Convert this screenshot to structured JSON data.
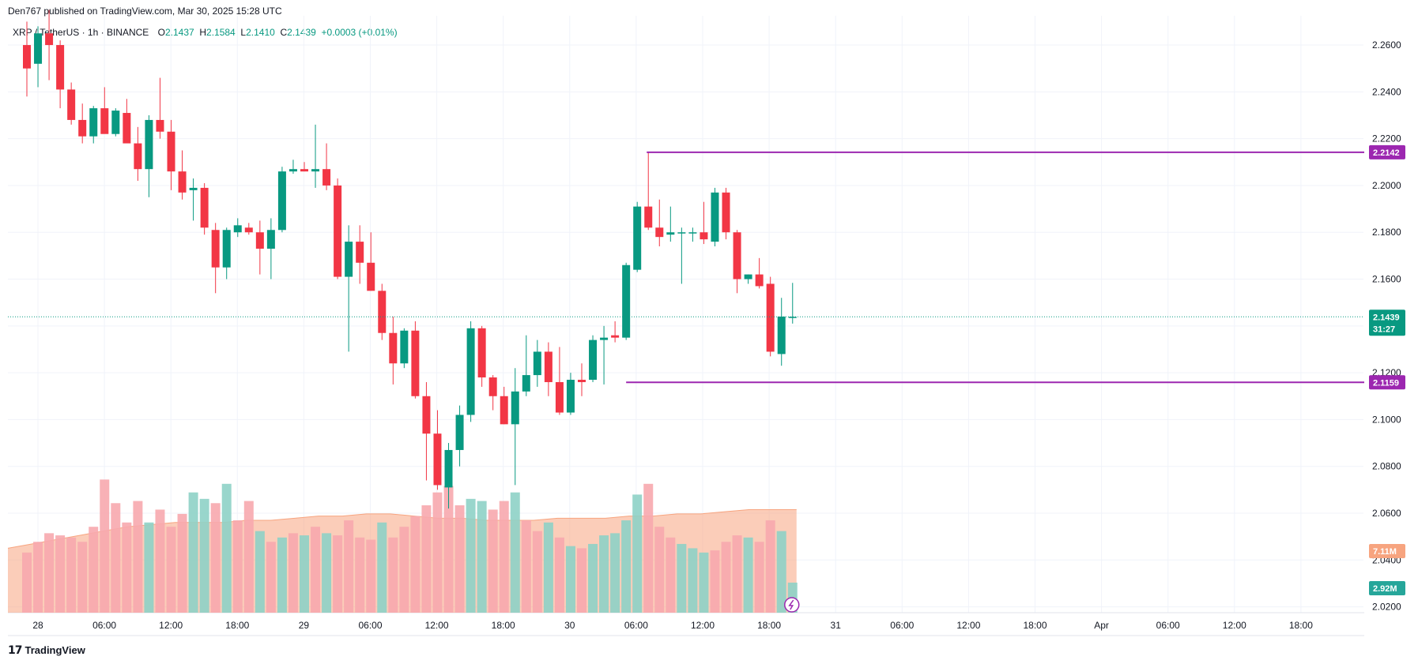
{
  "publisher": "Den767 published on TradingView.com, Mar 30, 2025 15:28 UTC",
  "brand": "TradingView",
  "legend": {
    "symbol": "XRP / TetherUS · 1h · BINANCE",
    "o_label": "O",
    "o": "2.1437",
    "h_label": "H",
    "h": "2.1584",
    "l_label": "L",
    "l": "2.1410",
    "c_label": "C",
    "c": "2.1439",
    "change": "+0.0003 (+0.01%)"
  },
  "colors": {
    "up": "#089981",
    "down": "#f23645",
    "volume_up": "#8ed1c6",
    "volume_down": "#f7a9ae",
    "volume_ma": "#f7a47f",
    "level": "#9c27b0",
    "price_line": "#089981",
    "grid": "#f0f3fa"
  },
  "chart_data": {
    "type": "candlestick",
    "price_axis": {
      "ticks": [
        "2.2600",
        "2.2400",
        "2.2200",
        "2.2000",
        "2.1800",
        "2.1600",
        "2.1400",
        "2.1200",
        "2.1000",
        "2.0800",
        "2.0600",
        "2.0400",
        "2.0200"
      ],
      "ylim": [
        2.0175,
        2.2725
      ]
    },
    "time_axis": {
      "labels": [
        "28",
        "06:00",
        "12:00",
        "18:00",
        "29",
        "06:00",
        "12:00",
        "18:00",
        "30",
        "06:00",
        "12:00",
        "18:00",
        "31",
        "06:00",
        "12:00",
        "18:00",
        "Apr",
        "06:00",
        "12:00",
        "18:00"
      ]
    },
    "candles": [
      [
        2.26,
        2.27,
        2.238,
        2.25
      ],
      [
        2.252,
        2.268,
        2.242,
        2.265
      ],
      [
        2.265,
        2.275,
        2.245,
        2.26
      ],
      [
        2.26,
        2.262,
        2.233,
        2.241
      ],
      [
        2.241,
        2.244,
        2.226,
        2.228
      ],
      [
        2.228,
        2.235,
        2.218,
        2.221
      ],
      [
        2.221,
        2.234,
        2.218,
        2.233
      ],
      [
        2.233,
        2.242,
        2.223,
        2.222
      ],
      [
        2.222,
        2.233,
        2.221,
        2.232
      ],
      [
        2.231,
        2.237,
        2.22,
        2.218
      ],
      [
        2.218,
        2.225,
        2.202,
        2.207
      ],
      [
        2.207,
        2.23,
        2.195,
        2.228
      ],
      [
        2.228,
        2.246,
        2.22,
        2.223
      ],
      [
        2.223,
        2.228,
        2.198,
        2.206
      ],
      [
        2.206,
        2.215,
        2.194,
        2.197
      ],
      [
        2.198,
        2.203,
        2.185,
        2.199
      ],
      [
        2.199,
        2.201,
        2.179,
        2.182
      ],
      [
        2.181,
        2.184,
        2.154,
        2.165
      ],
      [
        2.165,
        2.182,
        2.16,
        2.181
      ],
      [
        2.18,
        2.186,
        2.178,
        2.183
      ],
      [
        2.182,
        2.184,
        2.179,
        2.18
      ],
      [
        2.18,
        2.185,
        2.162,
        2.173
      ],
      [
        2.173,
        2.186,
        2.16,
        2.181
      ],
      [
        2.181,
        2.208,
        2.18,
        2.206
      ],
      [
        2.206,
        2.211,
        2.205,
        2.207
      ],
      [
        2.207,
        2.21,
        2.206,
        2.206
      ],
      [
        2.206,
        2.226,
        2.199,
        2.207
      ],
      [
        2.207,
        2.218,
        2.198,
        2.2
      ],
      [
        2.2,
        2.203,
        2.16,
        2.161
      ],
      [
        2.161,
        2.183,
        2.129,
        2.176
      ],
      [
        2.176,
        2.183,
        2.158,
        2.167
      ],
      [
        2.167,
        2.18,
        2.155,
        2.155
      ],
      [
        2.155,
        2.158,
        2.134,
        2.137
      ],
      [
        2.137,
        2.144,
        2.115,
        2.124
      ],
      [
        2.124,
        2.139,
        2.122,
        2.138
      ],
      [
        2.138,
        2.142,
        2.109,
        2.11
      ],
      [
        2.11,
        2.116,
        2.074,
        2.094
      ],
      [
        2.094,
        2.104,
        2.07,
        2.072
      ],
      [
        2.071,
        2.09,
        2.062,
        2.087
      ],
      [
        2.087,
        2.106,
        2.08,
        2.102
      ],
      [
        2.102,
        2.142,
        2.099,
        2.139
      ],
      [
        2.139,
        2.14,
        2.114,
        2.118
      ],
      [
        2.118,
        2.119,
        2.104,
        2.11
      ],
      [
        2.11,
        2.114,
        2.098,
        2.098
      ],
      [
        2.098,
        2.122,
        2.072,
        2.112
      ],
      [
        2.112,
        2.136,
        2.11,
        2.119
      ],
      [
        2.119,
        2.134,
        2.114,
        2.129
      ],
      [
        2.129,
        2.133,
        2.11,
        2.116
      ],
      [
        2.116,
        2.131,
        2.102,
        2.103
      ],
      [
        2.103,
        2.12,
        2.102,
        2.117
      ],
      [
        2.117,
        2.124,
        2.11,
        2.116
      ],
      [
        2.117,
        2.136,
        2.116,
        2.134
      ],
      [
        2.134,
        2.14,
        2.115,
        2.135
      ],
      [
        2.136,
        2.142,
        2.133,
        2.135
      ],
      [
        2.135,
        2.167,
        2.134,
        2.166
      ],
      [
        2.164,
        2.193,
        2.163,
        2.191
      ],
      [
        2.191,
        2.2142,
        2.181,
        2.182
      ],
      [
        2.182,
        2.194,
        2.174,
        2.178
      ],
      [
        2.179,
        2.191,
        2.176,
        2.18
      ],
      [
        2.18,
        2.182,
        2.158,
        2.18
      ],
      [
        2.18,
        2.182,
        2.176,
        2.18
      ],
      [
        2.18,
        2.193,
        2.175,
        2.177
      ],
      [
        2.176,
        2.199,
        2.174,
        2.197
      ],
      [
        2.197,
        2.199,
        2.177,
        2.18
      ],
      [
        2.18,
        2.181,
        2.154,
        2.16
      ],
      [
        2.16,
        2.162,
        2.158,
        2.162
      ],
      [
        2.162,
        2.169,
        2.156,
        2.157
      ],
      [
        2.158,
        2.161,
        2.127,
        2.129
      ],
      [
        2.128,
        2.152,
        2.123,
        2.144
      ],
      [
        2.1437,
        2.1584,
        2.141,
        2.1439
      ]
    ],
    "volume_bars": [
      {
        "v": 0.28,
        "up": false
      },
      {
        "v": 0.33,
        "up": false
      },
      {
        "v": 0.37,
        "up": false
      },
      {
        "v": 0.36,
        "up": false
      },
      {
        "v": 0.35,
        "up": false
      },
      {
        "v": 0.33,
        "up": false
      },
      {
        "v": 0.4,
        "up": false
      },
      {
        "v": 0.62,
        "up": false
      },
      {
        "v": 0.51,
        "up": false
      },
      {
        "v": 0.42,
        "up": false
      },
      {
        "v": 0.52,
        "up": false
      },
      {
        "v": 0.42,
        "up": true
      },
      {
        "v": 0.48,
        "up": false
      },
      {
        "v": 0.4,
        "up": false
      },
      {
        "v": 0.46,
        "up": false
      },
      {
        "v": 0.56,
        "up": true
      },
      {
        "v": 0.53,
        "up": true
      },
      {
        "v": 0.51,
        "up": false
      },
      {
        "v": 0.6,
        "up": true
      },
      {
        "v": 0.43,
        "up": false
      },
      {
        "v": 0.52,
        "up": false
      },
      {
        "v": 0.38,
        "up": true
      },
      {
        "v": 0.33,
        "up": false
      },
      {
        "v": 0.35,
        "up": true
      },
      {
        "v": 0.37,
        "up": false
      },
      {
        "v": 0.36,
        "up": true
      },
      {
        "v": 0.4,
        "up": false
      },
      {
        "v": 0.37,
        "up": true
      },
      {
        "v": 0.36,
        "up": false
      },
      {
        "v": 0.43,
        "up": false
      },
      {
        "v": 0.35,
        "up": false
      },
      {
        "v": 0.34,
        "up": false
      },
      {
        "v": 0.42,
        "up": true
      },
      {
        "v": 0.35,
        "up": false
      },
      {
        "v": 0.4,
        "up": false
      },
      {
        "v": 0.45,
        "up": false
      },
      {
        "v": 0.5,
        "up": false
      },
      {
        "v": 0.56,
        "up": false
      },
      {
        "v": 0.59,
        "up": false
      },
      {
        "v": 0.5,
        "up": false
      },
      {
        "v": 0.53,
        "up": true
      },
      {
        "v": 0.52,
        "up": true
      },
      {
        "v": 0.48,
        "up": false
      },
      {
        "v": 0.52,
        "up": false
      },
      {
        "v": 0.56,
        "up": true
      },
      {
        "v": 0.43,
        "up": false
      },
      {
        "v": 0.38,
        "up": false
      },
      {
        "v": 0.42,
        "up": true
      },
      {
        "v": 0.35,
        "up": false
      },
      {
        "v": 0.31,
        "up": true
      },
      {
        "v": 0.3,
        "up": false
      },
      {
        "v": 0.32,
        "up": true
      },
      {
        "v": 0.36,
        "up": true
      },
      {
        "v": 0.37,
        "up": true
      },
      {
        "v": 0.43,
        "up": true
      },
      {
        "v": 0.55,
        "up": true
      },
      {
        "v": 0.6,
        "up": false
      },
      {
        "v": 0.4,
        "up": false
      },
      {
        "v": 0.35,
        "up": false
      },
      {
        "v": 0.32,
        "up": true
      },
      {
        "v": 0.3,
        "up": true
      },
      {
        "v": 0.28,
        "up": true
      },
      {
        "v": 0.29,
        "up": false
      },
      {
        "v": 0.33,
        "up": false
      },
      {
        "v": 0.36,
        "up": false
      },
      {
        "v": 0.35,
        "up": true
      },
      {
        "v": 0.33,
        "up": false
      },
      {
        "v": 0.43,
        "up": false
      },
      {
        "v": 0.38,
        "up": true
      },
      {
        "v": 0.14,
        "up": true
      }
    ],
    "volume_ma_profile": [
      0.3,
      0.32,
      0.34,
      0.36,
      0.38,
      0.4,
      0.41,
      0.42,
      0.42,
      0.42,
      0.43,
      0.43,
      0.44,
      0.45,
      0.45,
      0.46,
      0.46,
      0.45,
      0.44,
      0.44,
      0.43,
      0.43,
      0.43,
      0.44,
      0.44,
      0.44,
      0.45,
      0.45,
      0.46,
      0.46,
      0.47,
      0.48,
      0.48,
      0.48
    ],
    "levels": [
      {
        "price": 2.2142,
        "label": "2.2142"
      },
      {
        "price": 2.1159,
        "label": "2.1159"
      }
    ],
    "last_price": {
      "price": 2.1439,
      "label": "2.1439",
      "countdown": "31:27"
    },
    "volume_tags": [
      {
        "label": "7.11M",
        "color": "#f7a47f"
      },
      {
        "label": "2.92M",
        "color": "#26a69a"
      }
    ]
  }
}
